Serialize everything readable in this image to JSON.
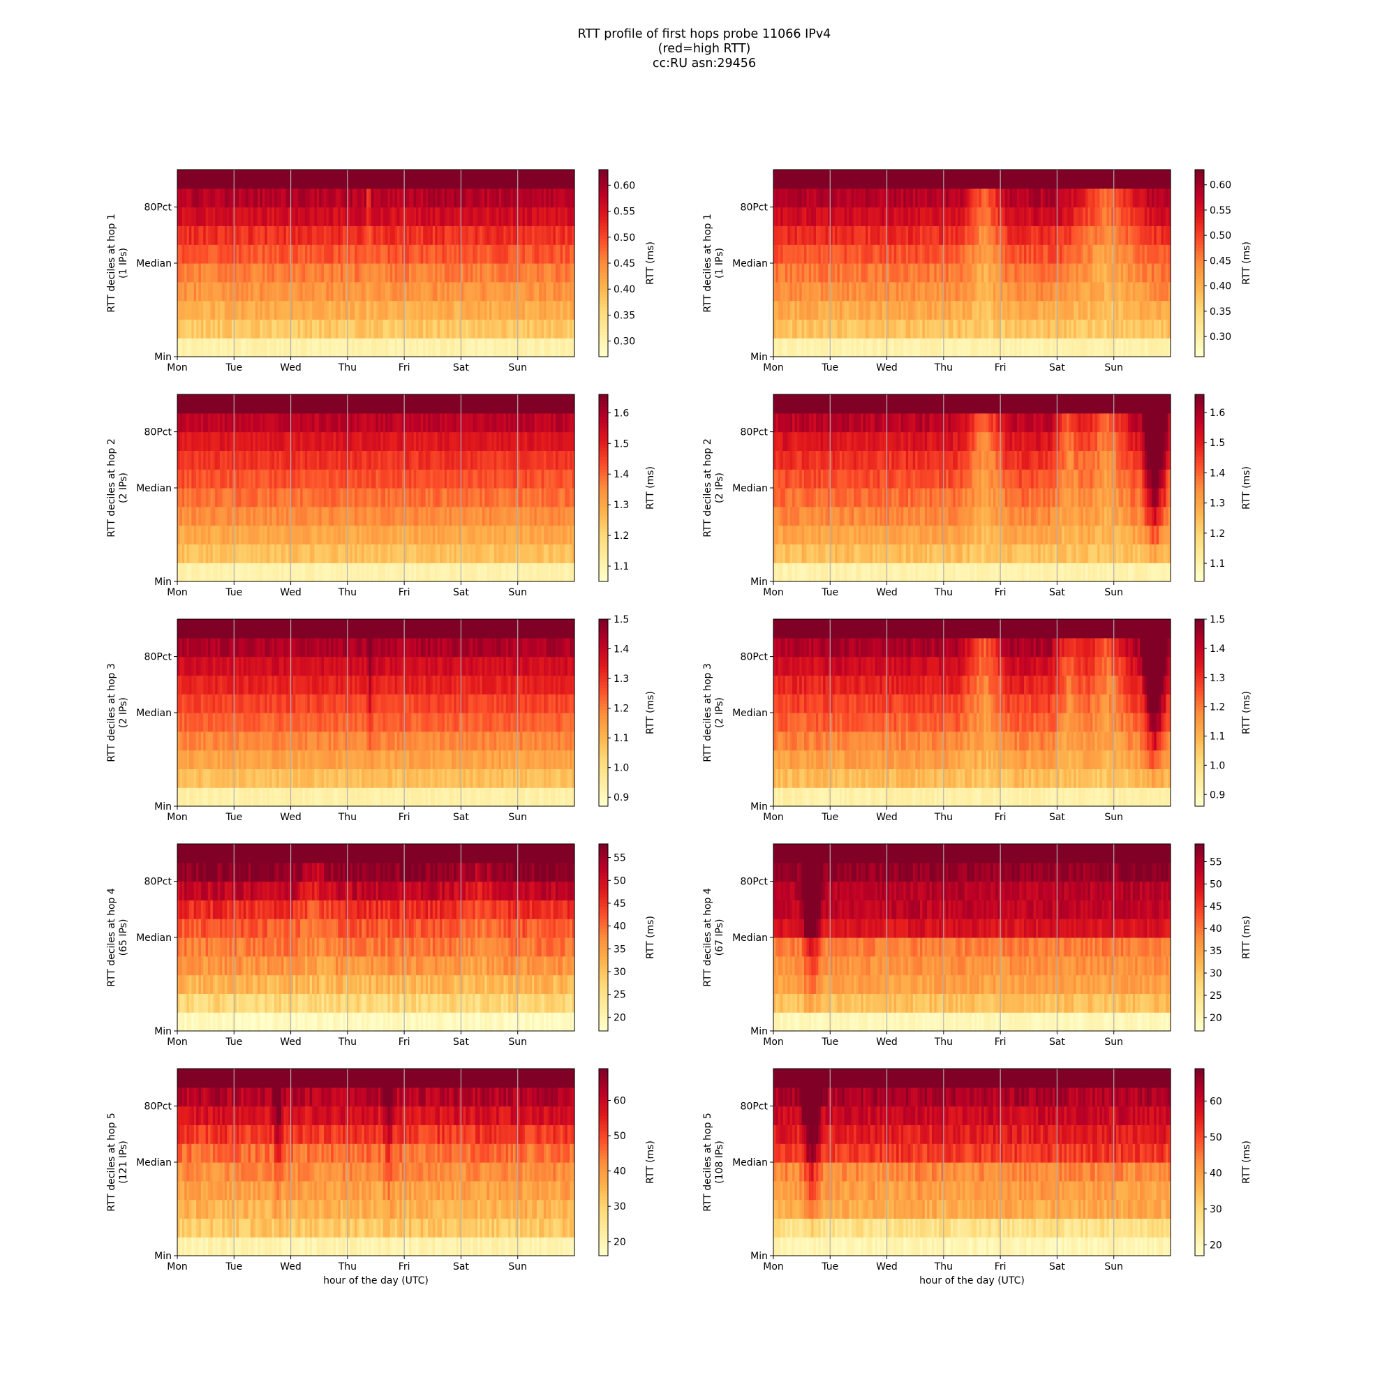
{
  "figure": {
    "title_lines": [
      "RTT profile of first hops probe 11066 IPv4",
      "(red=high RTT)",
      "cc:RU asn:29456"
    ],
    "colormap": [
      "#ffffcc",
      "#ffeda0",
      "#fed976",
      "#feb24c",
      "#fd8d3c",
      "#fc4e2a",
      "#e31a1c",
      "#bd0026",
      "#800026"
    ],
    "xlabel": "hour of the day (UTC)"
  },
  "chart_data": [
    {
      "type": "heatmap",
      "hop": 1,
      "ips": 1,
      "ylabel": [
        "RTT deciles at hop 1",
        "(1 IPs)"
      ],
      "yticks": [
        "Min",
        "Median",
        "80Pct"
      ],
      "xticks": [
        "Mon",
        "Tue",
        "Wed",
        "Thu",
        "Fri",
        "Sat",
        "Sun"
      ],
      "cbar_label": "RTT (ms)",
      "cbar_range": [
        0.27,
        0.63
      ],
      "cbar_ticks": [
        "0.30",
        "0.35",
        "0.40",
        "0.45",
        "0.50",
        "0.55",
        "0.60"
      ],
      "decile_profile": [
        0.3,
        0.38,
        0.41,
        0.44,
        0.46,
        0.49,
        0.52,
        0.56,
        0.59,
        0.65
      ],
      "noise": 0.12,
      "bumps": [
        {
          "day": 3.35,
          "width": 0.06,
          "amp": -0.25
        }
      ]
    },
    {
      "type": "heatmap",
      "hop": 1,
      "ips": 1,
      "ylabel": [
        "RTT deciles at hop 1",
        "(1 IPs)"
      ],
      "yticks": [
        "Min",
        "Median",
        "80Pct"
      ],
      "xticks": [
        "Mon",
        "Tue",
        "Wed",
        "Thu",
        "Fri",
        "Sat",
        "Sun"
      ],
      "cbar_label": "RTT (ms)",
      "cbar_range": [
        0.26,
        0.63
      ],
      "cbar_ticks": [
        "0.30",
        "0.35",
        "0.40",
        "0.45",
        "0.50",
        "0.55",
        "0.60"
      ],
      "decile_profile": [
        0.29,
        0.38,
        0.41,
        0.44,
        0.46,
        0.49,
        0.52,
        0.56,
        0.59,
        0.65
      ],
      "noise": 0.12,
      "bumps": [
        {
          "day": 3.7,
          "width": 0.45,
          "amp": -0.35
        },
        {
          "day": 5.85,
          "width": 0.8,
          "amp": -0.35
        }
      ]
    },
    {
      "type": "heatmap",
      "hop": 2,
      "ips": 2,
      "ylabel": [
        "RTT deciles at hop 2",
        "(2 IPs)"
      ],
      "yticks": [
        "Min",
        "Median",
        "80Pct"
      ],
      "xticks": [
        "Mon",
        "Tue",
        "Wed",
        "Thu",
        "Fri",
        "Sat",
        "Sun"
      ],
      "cbar_label": "RTT (ms)",
      "cbar_range": [
        1.05,
        1.66
      ],
      "cbar_ticks": [
        "1.1",
        "1.2",
        "1.3",
        "1.4",
        "1.5",
        "1.6"
      ],
      "decile_profile": [
        1.1,
        1.25,
        1.3,
        1.35,
        1.39,
        1.43,
        1.47,
        1.52,
        1.58,
        1.7
      ],
      "noise": 0.1,
      "bumps": []
    },
    {
      "type": "heatmap",
      "hop": 2,
      "ips": 2,
      "ylabel": [
        "RTT deciles at hop 2",
        "(2 IPs)"
      ],
      "yticks": [
        "Min",
        "Median",
        "80Pct"
      ],
      "xticks": [
        "Mon",
        "Tue",
        "Wed",
        "Thu",
        "Fri",
        "Sat",
        "Sun"
      ],
      "cbar_label": "RTT (ms)",
      "cbar_range": [
        1.04,
        1.66
      ],
      "cbar_ticks": [
        "1.1",
        "1.2",
        "1.3",
        "1.4",
        "1.5",
        "1.6"
      ],
      "decile_profile": [
        1.09,
        1.25,
        1.3,
        1.35,
        1.39,
        1.43,
        1.47,
        1.52,
        1.58,
        1.7
      ],
      "noise": 0.12,
      "bumps": [
        {
          "day": 3.7,
          "width": 0.45,
          "amp": -0.35
        },
        {
          "day": 5.2,
          "width": 0.35,
          "amp": -0.3
        },
        {
          "day": 5.85,
          "width": 0.5,
          "amp": -0.35
        },
        {
          "day": 6.7,
          "width": 0.25,
          "amp": 0.9
        }
      ]
    },
    {
      "type": "heatmap",
      "hop": 3,
      "ips": 2,
      "ylabel": [
        "RTT deciles at hop 3",
        "(2 IPs)"
      ],
      "yticks": [
        "Min",
        "Median",
        "80Pct"
      ],
      "xticks": [
        "Mon",
        "Tue",
        "Wed",
        "Thu",
        "Fri",
        "Sat",
        "Sun"
      ],
      "cbar_label": "RTT (ms)",
      "cbar_range": [
        0.87,
        1.5
      ],
      "cbar_ticks": [
        "0.9",
        "1.0",
        "1.1",
        "1.2",
        "1.3",
        "1.4",
        "1.5"
      ],
      "decile_profile": [
        0.93,
        1.08,
        1.14,
        1.19,
        1.24,
        1.28,
        1.33,
        1.38,
        1.44,
        1.55
      ],
      "noise": 0.1,
      "bumps": [
        {
          "day": 3.38,
          "width": 0.05,
          "amp": 0.3
        }
      ]
    },
    {
      "type": "heatmap",
      "hop": 3,
      "ips": 2,
      "ylabel": [
        "RTT deciles at hop 3",
        "(2 IPs)"
      ],
      "yticks": [
        "Min",
        "Median",
        "80Pct"
      ],
      "xticks": [
        "Mon",
        "Tue",
        "Wed",
        "Thu",
        "Fri",
        "Sat",
        "Sun"
      ],
      "cbar_label": "RTT (ms)",
      "cbar_range": [
        0.86,
        1.5
      ],
      "cbar_ticks": [
        "0.9",
        "1.0",
        "1.1",
        "1.2",
        "1.3",
        "1.4",
        "1.5"
      ],
      "decile_profile": [
        0.92,
        1.08,
        1.14,
        1.19,
        1.24,
        1.28,
        1.33,
        1.38,
        1.44,
        1.55
      ],
      "noise": 0.12,
      "bumps": [
        {
          "day": 3.7,
          "width": 0.45,
          "amp": -0.35
        },
        {
          "day": 5.2,
          "width": 0.35,
          "amp": -0.3
        },
        {
          "day": 5.85,
          "width": 0.5,
          "amp": -0.35
        },
        {
          "day": 6.7,
          "width": 0.25,
          "amp": 0.9
        }
      ]
    },
    {
      "type": "heatmap",
      "hop": 4,
      "ips": 65,
      "ylabel": [
        "RTT deciles at hop 4",
        "(65 IPs)"
      ],
      "yticks": [
        "Min",
        "Median",
        "80Pct"
      ],
      "xticks": [
        "Mon",
        "Tue",
        "Wed",
        "Thu",
        "Fri",
        "Sat",
        "Sun"
      ],
      "cbar_label": "RTT (ms)",
      "cbar_range": [
        17,
        58
      ],
      "cbar_ticks": [
        "20",
        "25",
        "30",
        "35",
        "40",
        "45",
        "50",
        "55"
      ],
      "decile_profile": [
        18,
        27,
        32,
        36,
        39,
        42,
        46,
        52,
        57,
        62
      ],
      "noise": 0.15,
      "bumps": [
        {
          "day": 2.4,
          "width": 0.4,
          "amp": -0.15
        },
        {
          "day": 5.3,
          "width": 0.5,
          "amp": -0.12
        }
      ]
    },
    {
      "type": "heatmap",
      "hop": 4,
      "ips": 67,
      "ylabel": [
        "RTT deciles at hop 4",
        "(67 IPs)"
      ],
      "yticks": [
        "Min",
        "Median",
        "80Pct"
      ],
      "xticks": [
        "Mon",
        "Tue",
        "Wed",
        "Thu",
        "Fri",
        "Sat",
        "Sun"
      ],
      "cbar_label": "RTT (ms)",
      "cbar_range": [
        17,
        59
      ],
      "cbar_ticks": [
        "20",
        "25",
        "30",
        "35",
        "40",
        "45",
        "50",
        "55"
      ],
      "decile_profile": [
        19,
        31,
        35,
        37,
        39,
        50,
        53,
        54,
        57,
        62
      ],
      "noise": 0.12,
      "bumps": [
        {
          "day": 0.65,
          "width": 0.2,
          "amp": 0.7
        }
      ]
    },
    {
      "type": "heatmap",
      "hop": 5,
      "ips": 121,
      "ylabel": [
        "RTT deciles at hop 5",
        "(121 IPs)"
      ],
      "yticks": [
        "Min",
        "Median",
        "80Pct"
      ],
      "xticks": [
        "Mon",
        "Tue",
        "Wed",
        "Thu",
        "Fri",
        "Sat",
        "Sun"
      ],
      "cbar_label": "RTT (ms)",
      "cbar_range": [
        16,
        69
      ],
      "cbar_ticks": [
        "20",
        "30",
        "40",
        "50",
        "60"
      ],
      "decile_profile": [
        20,
        32,
        36,
        39,
        42,
        46,
        52,
        58,
        63,
        72
      ],
      "noise": 0.15,
      "bumps": [
        {
          "day": 1.75,
          "width": 0.1,
          "amp": 0.35
        },
        {
          "day": 3.7,
          "width": 0.1,
          "amp": 0.3
        }
      ]
    },
    {
      "type": "heatmap",
      "hop": 5,
      "ips": 108,
      "ylabel": [
        "RTT deciles at hop 5",
        "(108 IPs)"
      ],
      "yticks": [
        "Min",
        "Median",
        "80Pct"
      ],
      "xticks": [
        "Mon",
        "Tue",
        "Wed",
        "Thu",
        "Fri",
        "Sat",
        "Sun"
      ],
      "cbar_label": "RTT (ms)",
      "cbar_range": [
        17,
        69
      ],
      "cbar_ticks": [
        "20",
        "30",
        "40",
        "50",
        "60"
      ],
      "decile_profile": [
        20,
        27,
        38,
        40,
        43,
        52,
        56,
        60,
        64,
        72
      ],
      "noise": 0.15,
      "bumps": [
        {
          "day": 0.65,
          "width": 0.2,
          "amp": 0.6
        }
      ]
    }
  ]
}
